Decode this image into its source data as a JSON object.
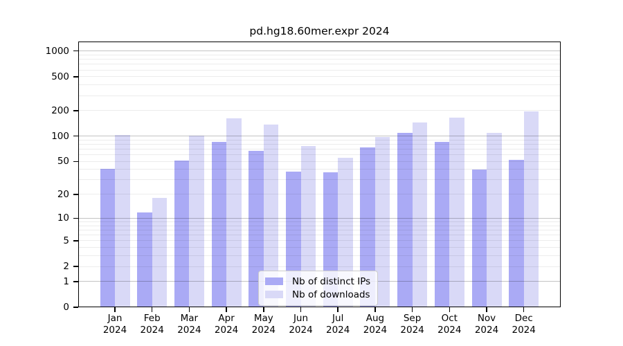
{
  "title": "pd.hg18.60mer.expr 2024",
  "chart_data": {
    "type": "bar",
    "title": "pd.hg18.60mer.expr 2024",
    "categories": [
      "Jan 2024",
      "Feb 2024",
      "Mar 2024",
      "Apr 2024",
      "May 2024",
      "Jun 2024",
      "Jul 2024",
      "Aug 2024",
      "Sep 2024",
      "Oct 2024",
      "Nov 2024",
      "Dec 2024"
    ],
    "series": [
      {
        "name": "Nb of distinct IPs",
        "color": "#aaaaf5",
        "values": [
          41,
          12,
          51,
          86,
          67,
          38,
          37,
          74,
          110,
          86,
          40,
          52
        ]
      },
      {
        "name": "Nb of downloads",
        "color": "#d9d9f7",
        "values": [
          103,
          18,
          101,
          163,
          138,
          76,
          55,
          97,
          144,
          165,
          110,
          197
        ]
      }
    ],
    "xlabel": "",
    "ylabel": "",
    "yscale": "log1p",
    "yticks": [
      0,
      1,
      2,
      5,
      10,
      20,
      50,
      100,
      200,
      500,
      1000
    ],
    "ylim": [
      0,
      1292
    ],
    "grid": "on",
    "legend_position": "lower center"
  },
  "colors": {
    "background": "#ffffff",
    "spine": "#000000",
    "grid_major": "#c3c3c3",
    "grid_minor": "#ececec",
    "bar_distinct_ips": "#aaaaf5",
    "bar_downloads": "#d9d9f7"
  }
}
